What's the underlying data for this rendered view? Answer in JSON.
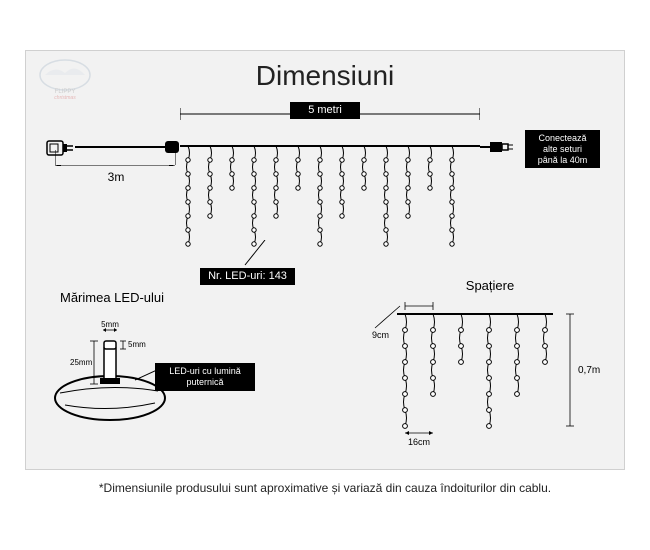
{
  "title": "Dimensiuni",
  "main_width_label": "5 metri",
  "lead_length": "3m",
  "connect_note_l1": "Conectează",
  "connect_note_l2": "alte seturi",
  "connect_note_l3": "până la 40m",
  "led_count_label": "Nr. LED-uri: 143",
  "led_size_title": "Mărimea LED-ului",
  "led_w": "5mm",
  "led_h": "5mm",
  "led_total": "25mm",
  "led_note_l1": "LED-uri cu lumină",
  "led_note_l2": "puternică",
  "spacing_title": "Spațiere",
  "spacing_top": "9cm",
  "spacing_bottom": "16cm",
  "spacing_height": "0,7m",
  "disclaimer": "*Dimensiunile produsului sunt aproximative și variază din cauza îndoiturilor din cablu.",
  "colors": {
    "bg": "#f2f2f2",
    "stroke": "#000000",
    "box": "#000000",
    "box_text": "#ffffff"
  },
  "icicle_main": {
    "strands": 13,
    "pattern": [
      7,
      5,
      3,
      7,
      5,
      3,
      7,
      5,
      3,
      7,
      5,
      3,
      7
    ],
    "spacing": 22,
    "bulb_gap": 14
  },
  "icicle_spacing": {
    "strands": 6,
    "pattern": [
      7,
      5,
      3,
      7,
      5,
      3
    ],
    "spacing": 28,
    "bulb_gap": 16
  }
}
